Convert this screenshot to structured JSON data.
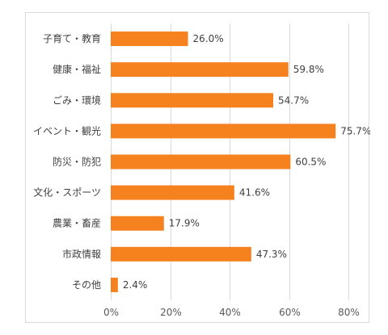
{
  "chart_data": {
    "type": "bar",
    "orientation": "horizontal",
    "categories": [
      "子育て・教育",
      "健康・福祉",
      "ごみ・環境",
      "イベント・観光",
      "防災・防犯",
      "文化・スポーツ",
      "農業・畜産",
      "市政情報",
      "その他"
    ],
    "values": [
      26.0,
      59.8,
      54.7,
      75.7,
      60.5,
      41.6,
      17.9,
      47.3,
      2.4
    ],
    "value_labels": [
      "26.0%",
      "59.8%",
      "54.7%",
      "75.7%",
      "60.5%",
      "41.6%",
      "17.9%",
      "47.3%",
      "2.4%"
    ],
    "x_ticks": [
      0,
      20,
      40,
      60,
      80
    ],
    "x_tick_labels": [
      "0%",
      "20%",
      "40%",
      "60%",
      "80%"
    ],
    "xlim": [
      0,
      80
    ],
    "grid": "vertical",
    "legend": "none",
    "bar_color": "#f5821f"
  }
}
